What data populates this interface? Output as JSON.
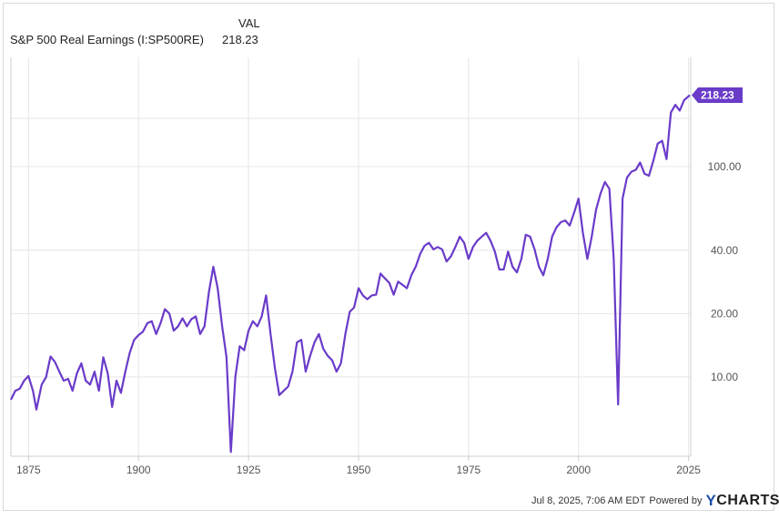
{
  "legend": {
    "header": "VAL",
    "series_name": "S&P 500 Real Earnings (I:SP500RE)",
    "series_value": "218.23"
  },
  "footer": {
    "timestamp": "Jul 8, 2025, 7:06 AM EDT",
    "powered_by": "Powered by",
    "brand_prefix": "Y",
    "brand_rest": "CHARTS"
  },
  "colors": {
    "series": "#6a3bc9",
    "grid": "#e6e6e6",
    "axis_text": "#555555"
  },
  "chart_data": {
    "type": "line",
    "title": "",
    "xlabel": "",
    "ylabel": "",
    "y_scale": "log",
    "xlim": [
      1871,
      2025.5
    ],
    "ylim": [
      4.2,
      330
    ],
    "x_ticks": [
      1875,
      1900,
      1925,
      1950,
      1975,
      2000,
      2025
    ],
    "x_tick_labels": [
      "1875",
      "1900",
      "1925",
      "1950",
      "1975",
      "2000",
      "2025"
    ],
    "y_ticks": [
      10,
      20,
      40,
      100
    ],
    "y_tick_labels": [
      "10.00",
      "20.00",
      "40.00",
      "100.00"
    ],
    "end_label": "218.23",
    "grid": true,
    "series": [
      {
        "name": "S&P 500 Real Earnings (I:SP500RE)",
        "points": [
          [
            1871.0,
            7.8
          ],
          [
            1872.0,
            8.6
          ],
          [
            1873.0,
            8.8
          ],
          [
            1874.0,
            9.6
          ],
          [
            1875.0,
            10.1
          ],
          [
            1876.0,
            8.6
          ],
          [
            1876.8,
            7.0
          ],
          [
            1878.0,
            9.2
          ],
          [
            1879.0,
            10.0
          ],
          [
            1880.0,
            12.5
          ],
          [
            1881.0,
            11.8
          ],
          [
            1882.0,
            10.6
          ],
          [
            1883.0,
            9.6
          ],
          [
            1884.0,
            9.8
          ],
          [
            1885.0,
            8.6
          ],
          [
            1886.0,
            10.4
          ],
          [
            1887.0,
            11.6
          ],
          [
            1888.0,
            9.6
          ],
          [
            1889.0,
            9.2
          ],
          [
            1890.0,
            10.6
          ],
          [
            1891.0,
            8.6
          ],
          [
            1892.0,
            12.4
          ],
          [
            1893.0,
            10.4
          ],
          [
            1894.0,
            7.2
          ],
          [
            1895.0,
            9.6
          ],
          [
            1896.0,
            8.4
          ],
          [
            1897.0,
            10.6
          ],
          [
            1898.0,
            13.0
          ],
          [
            1899.0,
            15.0
          ],
          [
            1900.0,
            15.8
          ],
          [
            1901.0,
            16.4
          ],
          [
            1902.0,
            18.0
          ],
          [
            1903.0,
            18.4
          ],
          [
            1904.0,
            16.0
          ],
          [
            1905.0,
            18.0
          ],
          [
            1906.0,
            21.0
          ],
          [
            1907.0,
            20.0
          ],
          [
            1908.0,
            16.6
          ],
          [
            1909.0,
            17.4
          ],
          [
            1910.0,
            19.0
          ],
          [
            1911.0,
            17.4
          ],
          [
            1912.0,
            18.8
          ],
          [
            1913.0,
            19.4
          ],
          [
            1914.0,
            16.0
          ],
          [
            1915.0,
            17.4
          ],
          [
            1916.0,
            25.4
          ],
          [
            1917.0,
            33.4
          ],
          [
            1918.0,
            26.4
          ],
          [
            1919.0,
            17.4
          ],
          [
            1920.0,
            12.4
          ],
          [
            1921.0,
            4.4
          ],
          [
            1922.0,
            10.0
          ],
          [
            1923.0,
            14.0
          ],
          [
            1924.0,
            13.4
          ],
          [
            1925.0,
            16.6
          ],
          [
            1926.0,
            18.4
          ],
          [
            1927.0,
            17.4
          ],
          [
            1928.0,
            19.4
          ],
          [
            1929.0,
            24.4
          ],
          [
            1930.0,
            16.0
          ],
          [
            1931.0,
            11.0
          ],
          [
            1932.0,
            8.2
          ],
          [
            1933.0,
            8.6
          ],
          [
            1934.0,
            9.0
          ],
          [
            1935.0,
            10.6
          ],
          [
            1936.0,
            14.6
          ],
          [
            1937.0,
            15.0
          ],
          [
            1938.0,
            10.6
          ],
          [
            1939.0,
            12.6
          ],
          [
            1940.0,
            14.6
          ],
          [
            1941.0,
            16.0
          ],
          [
            1942.0,
            13.6
          ],
          [
            1943.0,
            12.6
          ],
          [
            1944.0,
            12.0
          ],
          [
            1945.0,
            10.6
          ],
          [
            1946.0,
            11.6
          ],
          [
            1947.0,
            16.0
          ],
          [
            1948.0,
            20.4
          ],
          [
            1949.0,
            21.4
          ],
          [
            1950.0,
            26.4
          ],
          [
            1951.0,
            24.4
          ],
          [
            1952.0,
            23.4
          ],
          [
            1953.0,
            24.4
          ],
          [
            1954.0,
            24.6
          ],
          [
            1955.0,
            31.0
          ],
          [
            1956.0,
            29.4
          ],
          [
            1957.0,
            28.0
          ],
          [
            1958.0,
            24.6
          ],
          [
            1959.0,
            28.4
          ],
          [
            1960.0,
            27.4
          ],
          [
            1961.0,
            26.4
          ],
          [
            1962.0,
            30.4
          ],
          [
            1963.0,
            33.4
          ],
          [
            1964.0,
            38.4
          ],
          [
            1965.0,
            42.0
          ],
          [
            1966.0,
            43.4
          ],
          [
            1967.0,
            40.4
          ],
          [
            1968.0,
            41.4
          ],
          [
            1969.0,
            40.4
          ],
          [
            1970.0,
            35.4
          ],
          [
            1971.0,
            37.4
          ],
          [
            1972.0,
            41.4
          ],
          [
            1973.0,
            46.4
          ],
          [
            1974.0,
            43.4
          ],
          [
            1975.0,
            36.4
          ],
          [
            1976.0,
            41.4
          ],
          [
            1977.0,
            44.4
          ],
          [
            1978.0,
            46.4
          ],
          [
            1979.0,
            48.4
          ],
          [
            1980.0,
            44.4
          ],
          [
            1981.0,
            39.4
          ],
          [
            1982.0,
            32.4
          ],
          [
            1983.0,
            32.4
          ],
          [
            1984.0,
            39.4
          ],
          [
            1985.0,
            33.4
          ],
          [
            1986.0,
            31.4
          ],
          [
            1987.0,
            36.4
          ],
          [
            1988.0,
            47.4
          ],
          [
            1989.0,
            46.4
          ],
          [
            1990.0,
            40.4
          ],
          [
            1991.0,
            33.4
          ],
          [
            1992.0,
            30.4
          ],
          [
            1993.0,
            36.4
          ],
          [
            1994.0,
            46.4
          ],
          [
            1995.0,
            51.4
          ],
          [
            1996.0,
            54.4
          ],
          [
            1997.0,
            55.4
          ],
          [
            1998.0,
            52.4
          ],
          [
            1999.0,
            60.4
          ],
          [
            2000.0,
            70.4
          ],
          [
            2001.0,
            48.4
          ],
          [
            2002.0,
            36.4
          ],
          [
            2003.0,
            46.4
          ],
          [
            2004.0,
            62.4
          ],
          [
            2005.0,
            74.4
          ],
          [
            2006.0,
            84.4
          ],
          [
            2007.0,
            78.4
          ],
          [
            2008.0,
            36.4
          ],
          [
            2009.0,
            7.4
          ],
          [
            2010.0,
            70.4
          ],
          [
            2011.0,
            88.4
          ],
          [
            2012.0,
            94.4
          ],
          [
            2013.0,
            96.4
          ],
          [
            2014.0,
            104.4
          ],
          [
            2015.0,
            92.4
          ],
          [
            2016.0,
            90.4
          ],
          [
            2017.0,
            106.4
          ],
          [
            2018.0,
            128.4
          ],
          [
            2019.0,
            132.4
          ],
          [
            2020.0,
            108.4
          ],
          [
            2021.0,
            180.4
          ],
          [
            2022.0,
            196.4
          ],
          [
            2023.0,
            184.4
          ],
          [
            2024.0,
            206.4
          ],
          [
            2025.3,
            218.23
          ]
        ]
      }
    ]
  }
}
